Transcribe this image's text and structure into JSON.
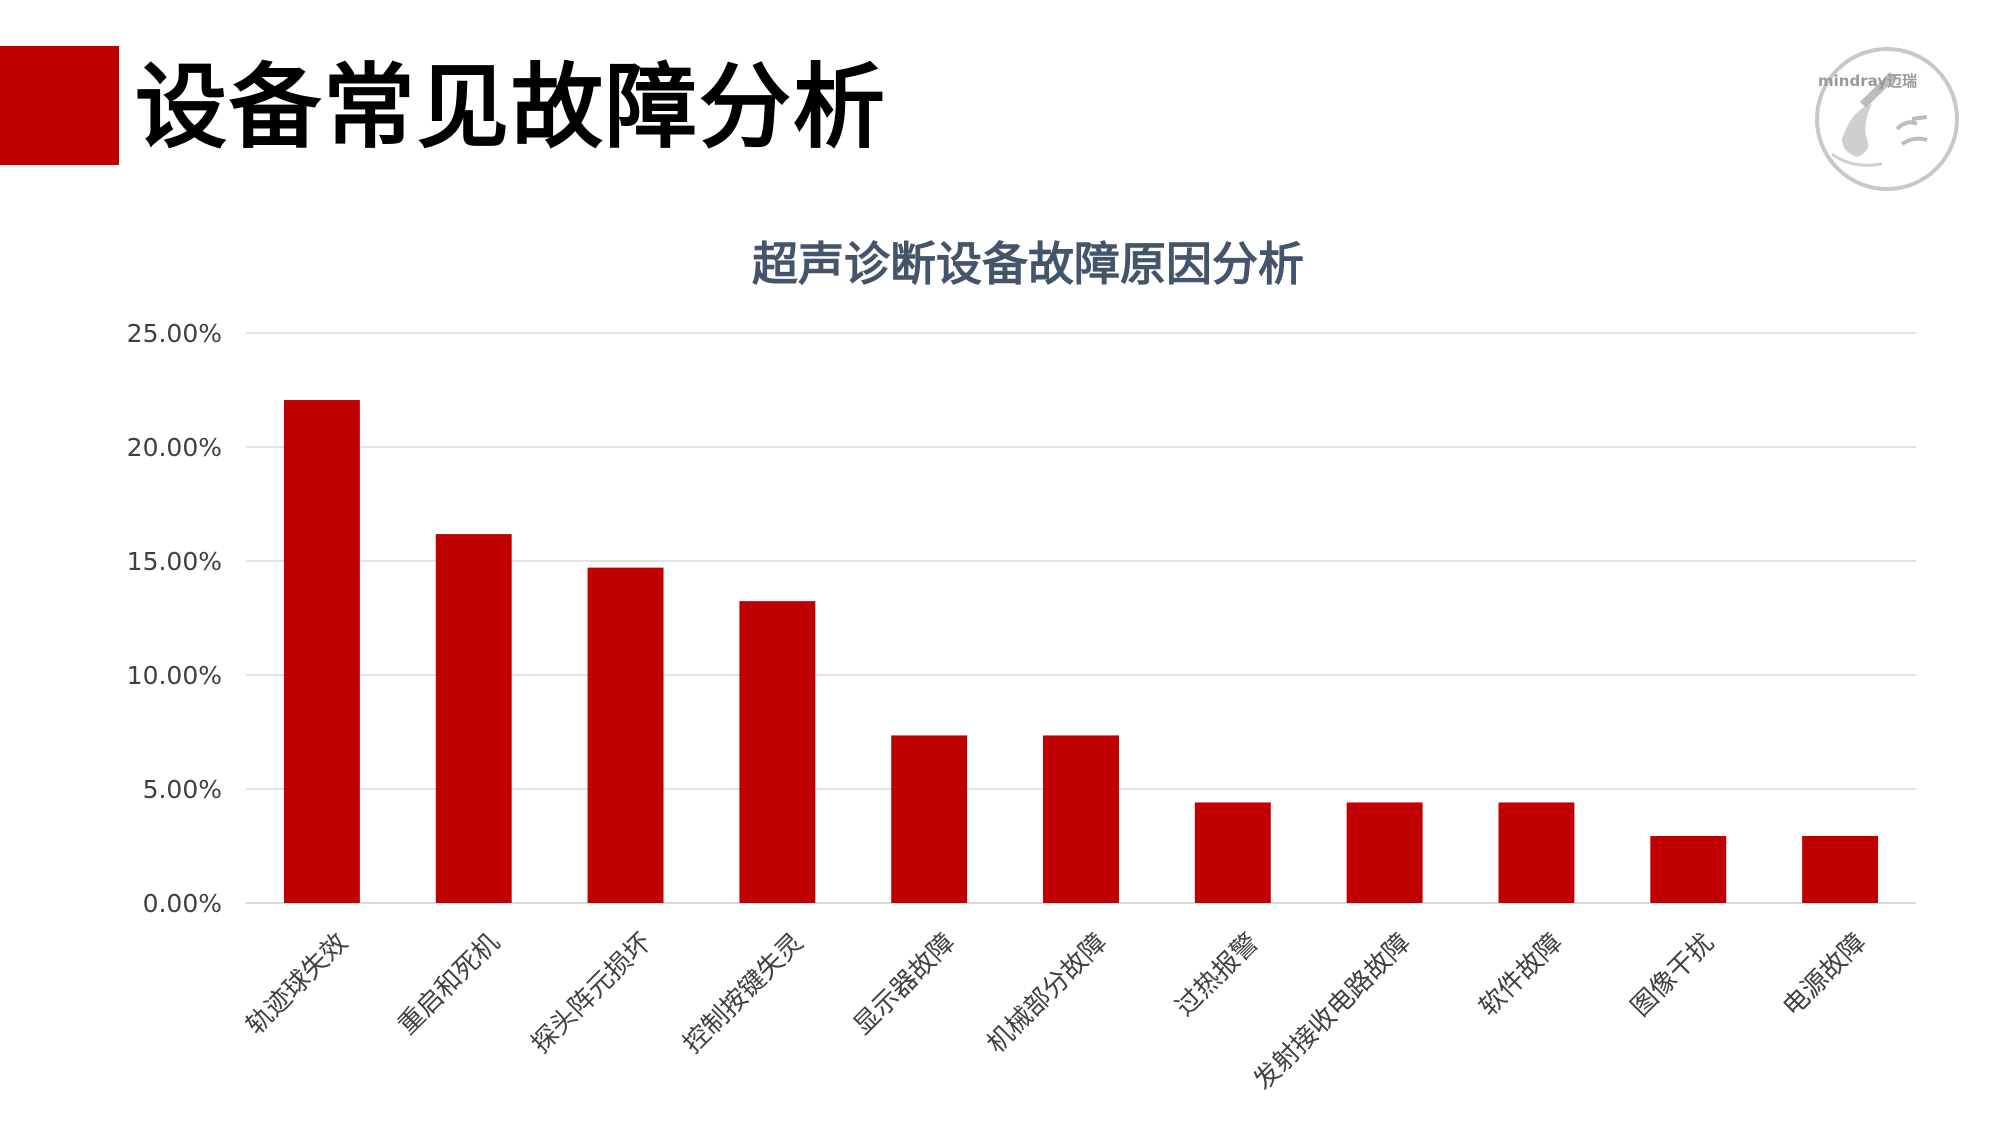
{
  "slide": {
    "title": "设备常见故障分析",
    "accent_color": "#c00000"
  },
  "logo": {
    "icon": "mindray-quality-seal-icon",
    "brand_text": "mindray迈瑞"
  },
  "chart_data": {
    "type": "bar",
    "title": "超声诊断设备故障原因分析",
    "xlabel": "",
    "ylabel": "",
    "categories": [
      "轨迹球失效",
      "重启和死机",
      "探头阵元损坏",
      "控制按键失灵",
      "显示器故障",
      "机械部分故障",
      "过热报警",
      "发射接收电路故障",
      "软件故障",
      "图像干扰",
      "电源故障"
    ],
    "values": [
      0.2206,
      0.1618,
      0.1471,
      0.1324,
      0.0735,
      0.0735,
      0.0441,
      0.0441,
      0.0441,
      0.0294,
      0.0294
    ],
    "ylim": [
      0,
      0.25
    ],
    "yticks": [
      0,
      0.05,
      0.1,
      0.15,
      0.2,
      0.25
    ],
    "ytick_labels": [
      "0.00%",
      "5.00%",
      "10.00%",
      "15.00%",
      "20.00%",
      "25.00%"
    ],
    "bar_color": "#c00000",
    "grid": true,
    "legend": "none"
  }
}
